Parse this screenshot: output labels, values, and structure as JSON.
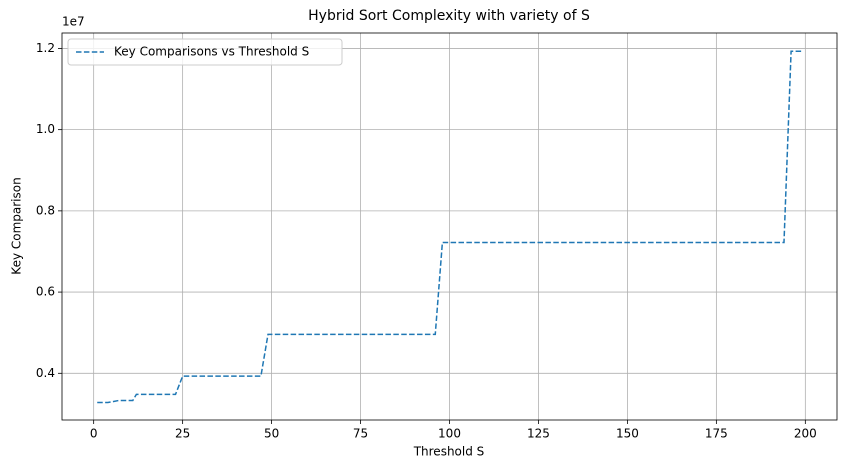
{
  "chart_data": {
    "type": "line",
    "title": "Hybrid Sort Complexity with variety of S",
    "x_label": "Threshold S",
    "y_label": "Key Comparison",
    "y_offset_label": "1e7",
    "x": [
      1,
      4,
      7,
      11,
      12,
      23,
      25,
      47,
      49,
      96,
      98,
      194,
      196,
      199
    ],
    "series": [
      {
        "name": "Key Comparisons vs Threshold S",
        "color": "#1f77b4",
        "values": [
          0.328,
          0.328,
          0.333,
          0.333,
          0.348,
          0.348,
          0.393,
          0.393,
          0.496,
          0.496,
          0.722,
          0.722,
          1.193,
          1.193
        ]
      }
    ],
    "xlim": [
      -8.9,
      208.9
    ],
    "ylim": [
      0.285,
      1.238
    ],
    "xticks": [
      0,
      25,
      50,
      75,
      100,
      125,
      150,
      175,
      200
    ],
    "yticks": [
      0.4,
      0.6,
      0.8,
      {
        "value": 1,
        "label": "1.0"
      },
      1.2
    ],
    "grid": true,
    "legend": "upper-left",
    "line_style": "dashed"
  }
}
